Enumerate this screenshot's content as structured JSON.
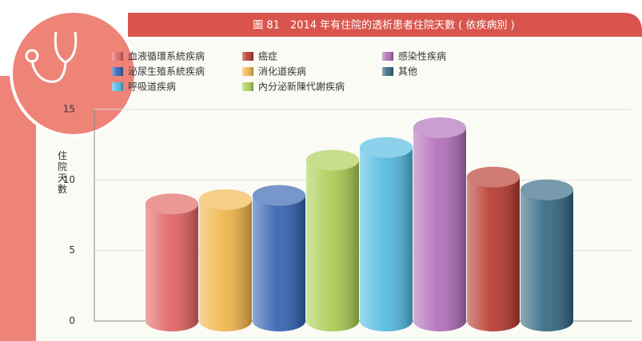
{
  "chart_data": {
    "type": "cylinder",
    "title": "圖 81　2014 年有住院的透析患者住院天數 ( 依疾病別 )",
    "y_label": "住院天數",
    "series": [
      {
        "name": "血液循環系統疾病",
        "color": "#e0605f",
        "values": [
          8.3
        ]
      },
      {
        "name": "消化道疾病",
        "color": "#f0b447",
        "values": [
          8.6
        ]
      },
      {
        "name": "泌尿生殖系統疾病",
        "color": "#2f5fb0",
        "values": [
          8.9
        ]
      },
      {
        "name": "內分泌新陳代謝疾病",
        "color": "#a8cc50",
        "values": [
          11.4
        ]
      },
      {
        "name": "呼吸道疾病",
        "color": "#4fb8e0",
        "values": [
          12.3
        ]
      },
      {
        "name": "感染性疾病",
        "color": "#b06ab8",
        "values": [
          13.7
        ]
      },
      {
        "name": "癌症",
        "color": "#b5352a",
        "values": [
          10.2
        ]
      },
      {
        "name": "其他",
        "color": "#2f6580",
        "values": [
          9.3
        ]
      }
    ],
    "ylim": [
      0,
      15
    ],
    "yticks": [
      0,
      5,
      10,
      15
    ],
    "grid": true
  }
}
